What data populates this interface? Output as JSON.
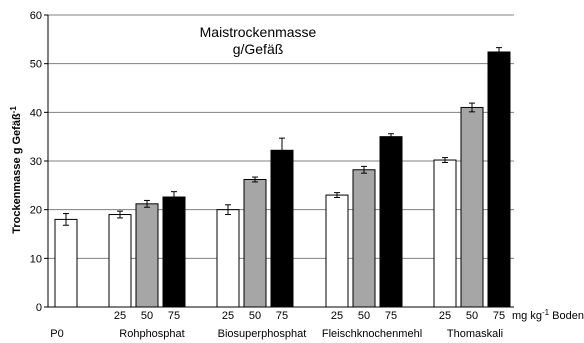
{
  "chart_data": {
    "type": "bar",
    "title": "Maistrockenmasse",
    "subtitle": "g/Gefäß",
    "xlabel": "",
    "ylabel": "Trockenmasse g Gefäß",
    "ylabel_sup": "-1",
    "ylim": [
      0,
      60
    ],
    "yticks": [
      0,
      10,
      20,
      30,
      40,
      50,
      60
    ],
    "grid": true,
    "dose_unit": "mg kg",
    "dose_unit_sup": "-1",
    "dose_unit_tail": " Boden",
    "groups": [
      {
        "label": "P0",
        "bars": [
          {
            "dose": "",
            "value": 18.0,
            "error": 1.2,
            "fill": "white"
          }
        ]
      },
      {
        "label": "Rohphosphat",
        "bars": [
          {
            "dose": "25",
            "value": 19.0,
            "error": 0.7,
            "fill": "white"
          },
          {
            "dose": "50",
            "value": 21.2,
            "error": 0.7,
            "fill": "gray"
          },
          {
            "dose": "75",
            "value": 22.6,
            "error": 1.1,
            "fill": "black"
          }
        ]
      },
      {
        "label": "Biosuperphosphat",
        "bars": [
          {
            "dose": "25",
            "value": 20.0,
            "error": 1.0,
            "fill": "white"
          },
          {
            "dose": "50",
            "value": 26.2,
            "error": 0.5,
            "fill": "gray"
          },
          {
            "dose": "75",
            "value": 32.2,
            "error": 2.5,
            "fill": "black"
          }
        ]
      },
      {
        "label": "Fleischknochenmehl",
        "bars": [
          {
            "dose": "25",
            "value": 23.0,
            "error": 0.5,
            "fill": "white"
          },
          {
            "dose": "50",
            "value": 28.2,
            "error": 0.7,
            "fill": "gray"
          },
          {
            "dose": "75",
            "value": 35.0,
            "error": 0.6,
            "fill": "black"
          }
        ]
      },
      {
        "label": "Thomaskali",
        "bars": [
          {
            "dose": "25",
            "value": 30.2,
            "error": 0.5,
            "fill": "white"
          },
          {
            "dose": "50",
            "value": 41.0,
            "error": 0.9,
            "fill": "gray"
          },
          {
            "dose": "75",
            "value": 52.4,
            "error": 0.9,
            "fill": "black"
          }
        ]
      }
    ],
    "colors": {
      "white": "#ffffff",
      "gray": "#a6a6a6",
      "black": "#000000",
      "grid": "#808080"
    }
  }
}
